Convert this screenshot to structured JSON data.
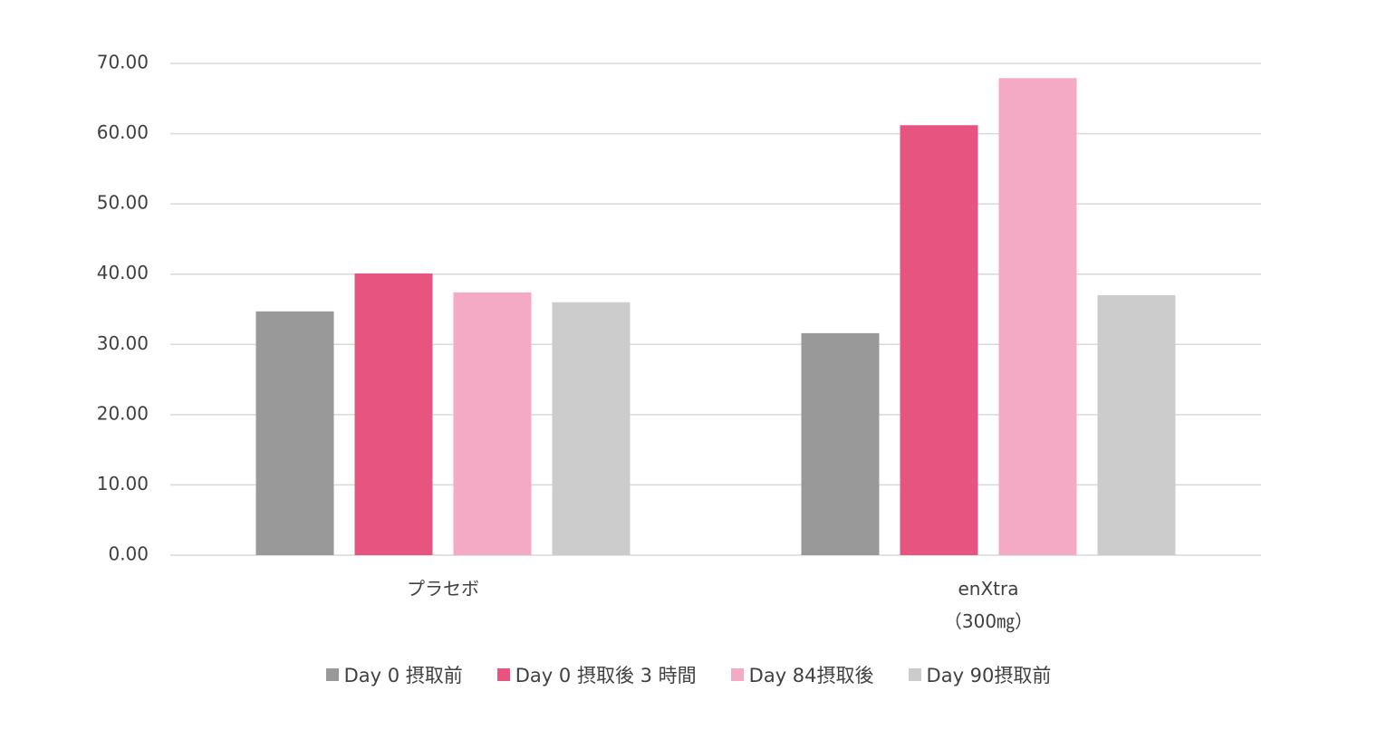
{
  "chart_data": {
    "type": "bar",
    "categories": [
      "プラセボ",
      "enXtra\n（300㎎）"
    ],
    "series": [
      {
        "name": "Day 0 摂取前",
        "color": "#999999",
        "values": [
          34.7,
          31.6
        ]
      },
      {
        "name": "Day 0 摂取後 3 時間",
        "color": "#e75480",
        "values": [
          40.1,
          61.2
        ]
      },
      {
        "name": "Day 84摂取後",
        "color": "#f4a9c4",
        "values": [
          37.4,
          67.9
        ]
      },
      {
        "name": "Day 90摂取前",
        "color": "#cccccc",
        "values": [
          36.0,
          37.0
        ]
      }
    ],
    "ylim": [
      0,
      70
    ],
    "yticks": [
      {
        "value": 0,
        "label": "0.00"
      },
      {
        "value": 10,
        "label": "10.00"
      },
      {
        "value": 20,
        "label": "20.00"
      },
      {
        "value": 30,
        "label": "30.00"
      },
      {
        "value": 40,
        "label": "40.00"
      },
      {
        "value": 50,
        "label": "50.00"
      },
      {
        "value": 60,
        "label": "60.00"
      },
      {
        "value": 70,
        "label": "70.00"
      }
    ],
    "grid": true,
    "legend": "bottom"
  }
}
